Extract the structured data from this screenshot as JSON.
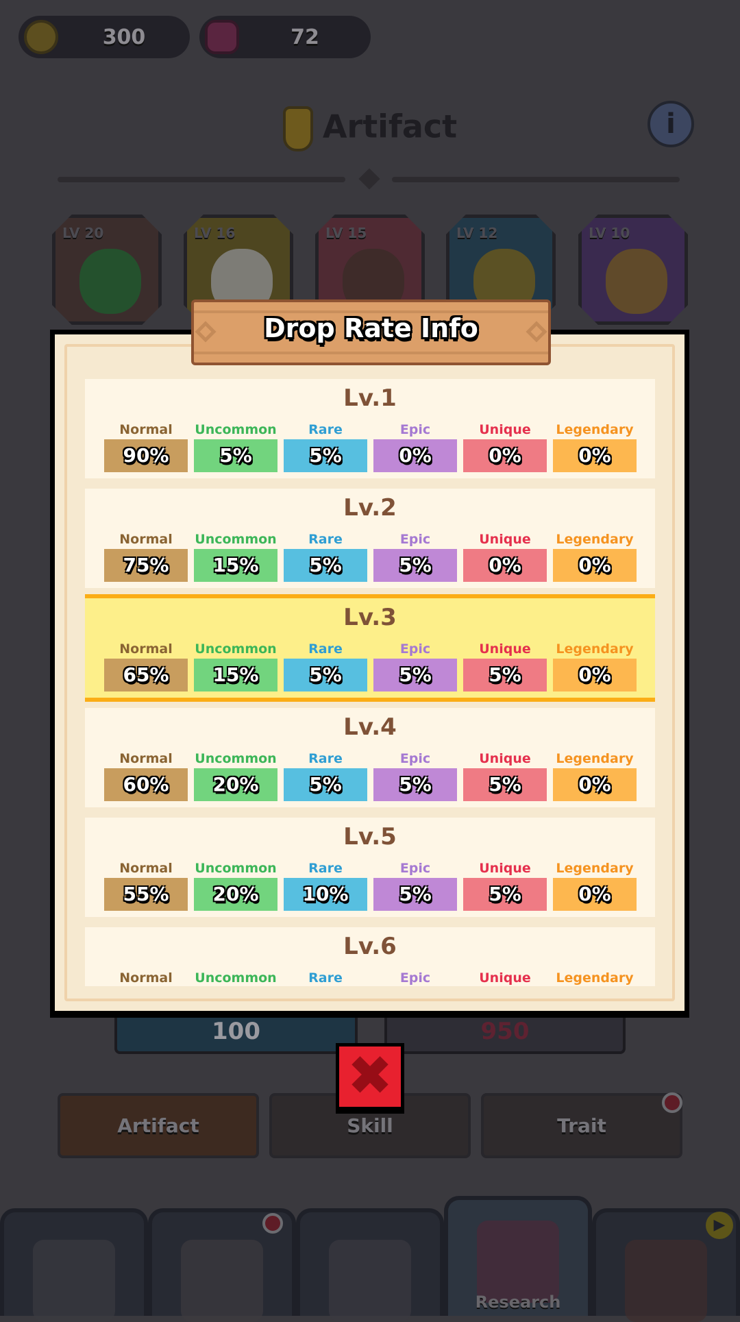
{
  "currency": {
    "gold": "300",
    "gems": "72",
    "gold_icon": "gold-coin-icon",
    "gem_icon": "gem-icon"
  },
  "header": {
    "title": "Artifact",
    "info_icon": "info-icon"
  },
  "artifacts": [
    {
      "level": "LV 20",
      "color": "#3b2d2c",
      "item": "#1f5a2e"
    },
    {
      "level": "LV 16",
      "color": "#4e4620",
      "item": "#8a8a8c"
    },
    {
      "level": "LV 15",
      "color": "#4f2a33",
      "item": "#3a2c27"
    },
    {
      "level": "LV 12",
      "color": "#213847",
      "item": "#6a581c"
    },
    {
      "level": "LV 10",
      "color": "#3a2a4f",
      "item": "#6a5320"
    }
  ],
  "behind_buttons": {
    "left_cost": "100",
    "right_cost": "950"
  },
  "tabs": [
    {
      "label": "Artifact"
    },
    {
      "label": "Skill"
    },
    {
      "label": "Trait"
    }
  ],
  "nav": [
    {
      "name": "castle"
    },
    {
      "name": "hero"
    },
    {
      "name": "battle"
    },
    {
      "name": "research",
      "label": "Research",
      "active": true
    },
    {
      "name": "shop"
    }
  ],
  "modal": {
    "title": "Drop Rate Info",
    "rarities": [
      {
        "name": "Normal",
        "color": "#8a6433",
        "box": "#c89d5e"
      },
      {
        "name": "Uncommon",
        "color": "#3cb658",
        "box": "#72d47e"
      },
      {
        "name": "Rare",
        "color": "#2f9ed3",
        "box": "#57bfe0"
      },
      {
        "name": "Epic",
        "color": "#a579d2",
        "box": "#bf88d6"
      },
      {
        "name": "Unique",
        "color": "#e5304d",
        "box": "#ef7b84"
      },
      {
        "name": "Legendary",
        "color": "#f59320",
        "box": "#fdb74f"
      }
    ],
    "current_level": "Lv.3",
    "levels": [
      {
        "label": "Lv.1",
        "rates": [
          "90%",
          "5%",
          "5%",
          "0%",
          "0%",
          "0%"
        ]
      },
      {
        "label": "Lv.2",
        "rates": [
          "75%",
          "15%",
          "5%",
          "5%",
          "0%",
          "0%"
        ]
      },
      {
        "label": "Lv.3",
        "rates": [
          "65%",
          "15%",
          "5%",
          "5%",
          "5%",
          "0%"
        ]
      },
      {
        "label": "Lv.4",
        "rates": [
          "60%",
          "20%",
          "5%",
          "5%",
          "5%",
          "0%"
        ]
      },
      {
        "label": "Lv.5",
        "rates": [
          "55%",
          "20%",
          "10%",
          "5%",
          "5%",
          "0%"
        ]
      },
      {
        "label": "Lv.6",
        "rates": []
      }
    ],
    "close_icon": "close-x-icon"
  }
}
